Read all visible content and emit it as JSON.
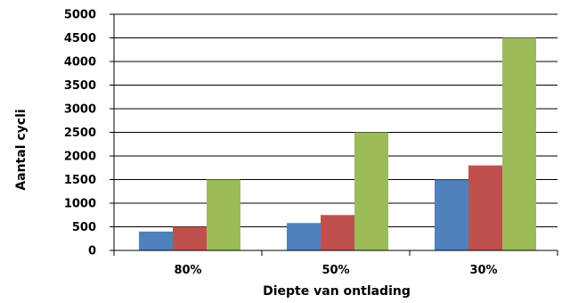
{
  "chart_data": {
    "type": "bar",
    "title": "",
    "xlabel": "Diepte van ontlading",
    "ylabel": "Aantal cycli",
    "categories": [
      "80%",
      "50%",
      "30%"
    ],
    "series": [
      {
        "values": [
          400,
          580,
          1500
        ],
        "color": "#4f81bd"
      },
      {
        "values": [
          500,
          750,
          1800
        ],
        "color": "#c0504d"
      },
      {
        "values": [
          1500,
          2500,
          4500
        ],
        "color": "#9bbb59"
      }
    ],
    "ylim": [
      0,
      5000
    ],
    "yticks": [
      "0",
      "500",
      "1000",
      "1500",
      "2000",
      "2500",
      "3000",
      "3500",
      "4000",
      "4500",
      "5000"
    ],
    "grid": true,
    "legend": "none"
  }
}
